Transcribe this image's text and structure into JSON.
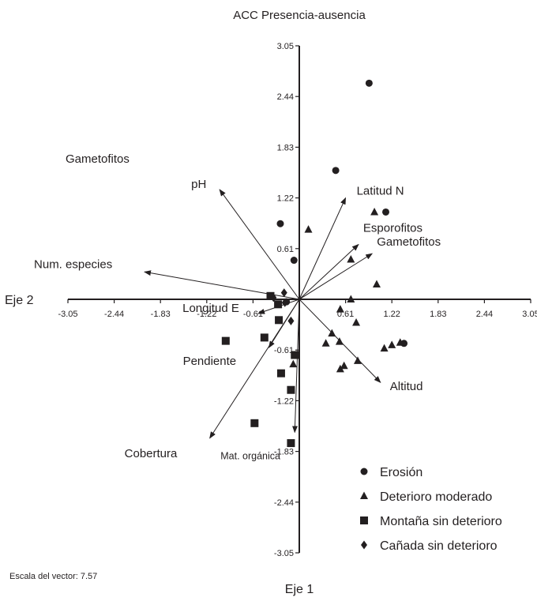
{
  "chart_data": {
    "type": "scatter",
    "title": "ACC Presencia-ausencia",
    "xlabel": "Eje 1",
    "ylabel": "Eje 2",
    "xlim": [
      -3.05,
      3.05
    ],
    "ylim": [
      -3.05,
      3.05
    ],
    "x_ticks": [
      "-3.05",
      "-2.44",
      "-1.83",
      "-1.22",
      "-0.61",
      "0.61",
      "1.22",
      "1.83",
      "2.44",
      "3.05"
    ],
    "y_ticks": [
      "3.05",
      "2.44",
      "1.83",
      "1.22",
      "0.61",
      "-0.61",
      "-1.22",
      "-1.83",
      "-2.44",
      "-3.05"
    ],
    "grid": false,
    "legend_position": "bottom-right",
    "note": "Escala del vector: 7.57",
    "vectors": [
      {
        "label": "Latitud N",
        "x": 0.61,
        "y": 1.22
      },
      {
        "label": "Esporofitos",
        "x": 0.78,
        "y": 0.66
      },
      {
        "label": "Gametofitos",
        "x": 0.96,
        "y": 0.55
      },
      {
        "label": "Altitud",
        "x": 1.07,
        "y": -1.0
      },
      {
        "label": "pH",
        "x": -1.05,
        "y": 1.32
      },
      {
        "label": "Num. especies",
        "x": -2.04,
        "y": 0.33
      },
      {
        "label": "Longitud E",
        "x": -0.54,
        "y": -0.17
      },
      {
        "label": "Pendiente",
        "x": -0.4,
        "y": -0.58
      },
      {
        "label": "Mat. orgánica",
        "x": -0.06,
        "y": -1.6
      },
      {
        "label": "Cobertura",
        "x": -1.18,
        "y": -1.67
      },
      {
        "label": "Gametofitos",
        "x": null,
        "y": null
      }
    ],
    "series": [
      {
        "name": "Erosión",
        "marker": "circle",
        "points": [
          [
            0.92,
            2.6
          ],
          [
            0.48,
            1.55
          ],
          [
            -0.25,
            0.91
          ],
          [
            -0.07,
            0.47
          ],
          [
            1.14,
            1.05
          ],
          [
            1.38,
            -0.53
          ],
          [
            -0.17,
            -0.03
          ]
        ]
      },
      {
        "name": "Deterioro moderado",
        "marker": "triangle",
        "points": [
          [
            0.12,
            0.84
          ],
          [
            0.68,
            0.48
          ],
          [
            0.99,
            1.05
          ],
          [
            1.02,
            0.18
          ],
          [
            0.68,
            0.0
          ],
          [
            0.54,
            -0.12
          ],
          [
            0.75,
            -0.28
          ],
          [
            1.12,
            -0.59
          ],
          [
            1.22,
            -0.55
          ],
          [
            1.33,
            -0.52
          ],
          [
            0.43,
            -0.41
          ],
          [
            0.53,
            -0.51
          ],
          [
            0.77,
            -0.74
          ],
          [
            0.59,
            -0.8
          ],
          [
            0.54,
            -0.84
          ],
          [
            0.35,
            -0.53
          ],
          [
            -0.08,
            -0.78
          ]
        ]
      },
      {
        "name": "Montaña sin deterioro",
        "marker": "square",
        "points": [
          [
            -0.38,
            0.04
          ],
          [
            -0.28,
            -0.06
          ],
          [
            -0.27,
            -0.25
          ],
          [
            -0.46,
            -0.46
          ],
          [
            -0.97,
            -0.5
          ],
          [
            -0.06,
            -0.67
          ],
          [
            -0.24,
            -0.89
          ],
          [
            -0.11,
            -1.09
          ],
          [
            -0.59,
            -1.49
          ],
          [
            -0.11,
            -1.73
          ]
        ]
      },
      {
        "name": "Cañada sin deterioro",
        "marker": "diamond",
        "points": [
          [
            -0.34,
            0.02
          ],
          [
            -0.2,
            0.08
          ],
          [
            -0.19,
            -0.04
          ],
          [
            -0.11,
            -0.26
          ]
        ]
      }
    ]
  }
}
